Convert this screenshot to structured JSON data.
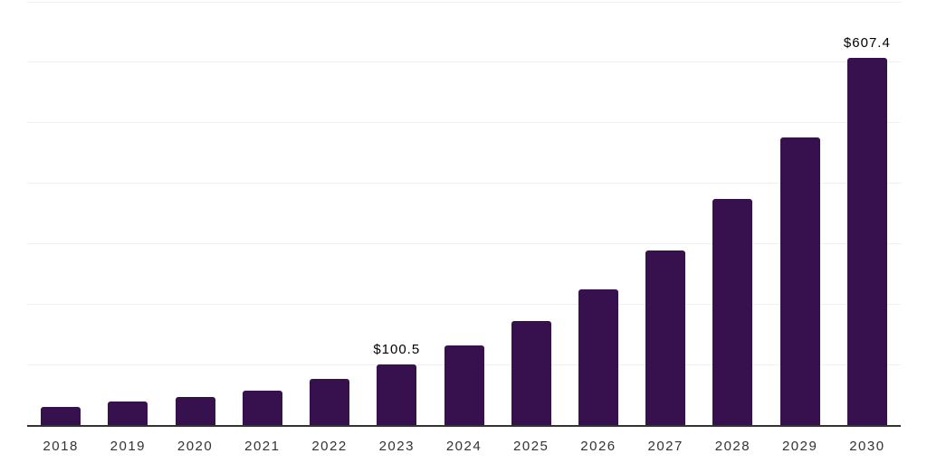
{
  "chart_data": {
    "type": "bar",
    "title": "",
    "xlabel": "",
    "ylabel": "",
    "categories": [
      "2018",
      "2019",
      "2020",
      "2021",
      "2022",
      "2023",
      "2024",
      "2025",
      "2026",
      "2027",
      "2028",
      "2029",
      "2030"
    ],
    "values": [
      30.2,
      39.6,
      47.6,
      57.6,
      77.0,
      100.5,
      132.4,
      172.7,
      225.1,
      289.4,
      374.7,
      476.4,
      607.4
    ],
    "annotations": [
      {
        "category": "2023",
        "text": "$100.5"
      },
      {
        "category": "2030",
        "text": "$607.4"
      }
    ],
    "ylim": [
      0,
      700
    ],
    "grid_step": 100,
    "grid": "horizontal",
    "legend": "none",
    "colors": {
      "bar": "#36114E",
      "axis_line": "#333333",
      "gridline": "#f0f0f0",
      "tick_label": "#333333",
      "data_label": "#000000",
      "background": "#ffffff"
    }
  }
}
